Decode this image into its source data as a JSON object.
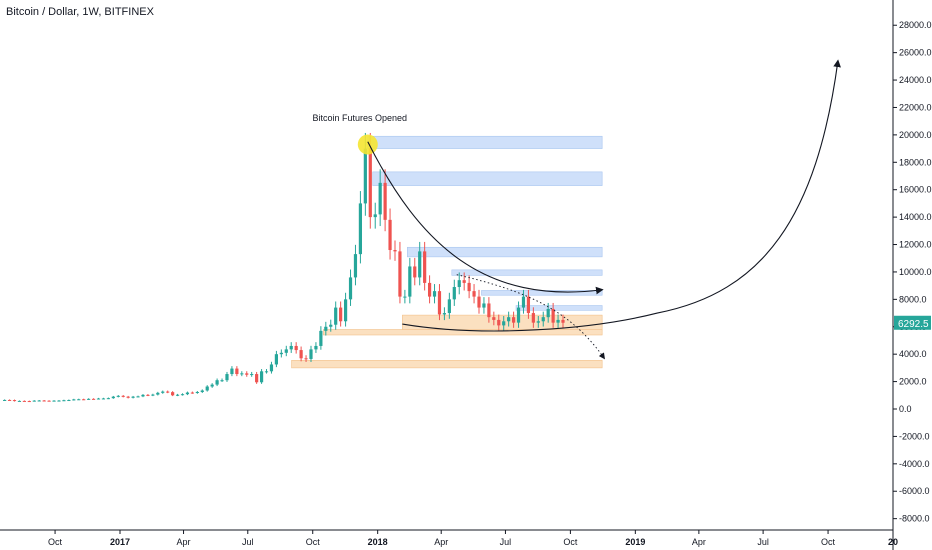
{
  "header": {
    "title": "Bitcoin / Dollar, 1W, BITFINEX"
  },
  "colors": {
    "up": "#26a69a",
    "down": "#ef5350",
    "resistance_zone": "#cfe0fa",
    "support_zone": "#fbe0c0",
    "highlight": "#f5e632",
    "last_price_bg": "#26a69a",
    "axis_line": "#131722"
  },
  "chart_data": {
    "type": "candlestick",
    "symbol": "Bitcoin / Dollar",
    "interval": "1W",
    "exchange": "BITFINEX",
    "last_price": "6292.5",
    "y_axis": {
      "range": [
        -9000,
        29000
      ],
      "ticks": [
        "28000.0",
        "26000.0",
        "24000.0",
        "22000.0",
        "20000.0",
        "18000.0",
        "16000.0",
        "14000.0",
        "12000.0",
        "10000.0",
        "8000.0",
        "6000.0",
        "4000.0",
        "2000.0",
        "0.0",
        "-2000.0",
        "-4000.0",
        "-6000.0",
        "-8000.0"
      ],
      "tick_values": [
        28000,
        26000,
        24000,
        22000,
        20000,
        18000,
        16000,
        14000,
        12000,
        10000,
        8000,
        6000,
        4000,
        2000,
        0,
        -2000,
        -4000,
        -6000,
        -8000
      ]
    },
    "x_axis": {
      "range": [
        "2016-07-15",
        "2020-01-01"
      ],
      "ticks": [
        {
          "label": "Oct",
          "date": "2016-10-01",
          "bold": false
        },
        {
          "label": "2017",
          "date": "2017-01-01",
          "bold": true
        },
        {
          "label": "Apr",
          "date": "2017-04-01",
          "bold": false
        },
        {
          "label": "Jul",
          "date": "2017-07-01",
          "bold": false
        },
        {
          "label": "Oct",
          "date": "2017-10-01",
          "bold": false
        },
        {
          "label": "2018",
          "date": "2018-01-01",
          "bold": true
        },
        {
          "label": "Apr",
          "date": "2018-04-01",
          "bold": false
        },
        {
          "label": "Jul",
          "date": "2018-07-01",
          "bold": false
        },
        {
          "label": "Oct",
          "date": "2018-10-01",
          "bold": false
        },
        {
          "label": "2019",
          "date": "2019-01-01",
          "bold": true
        },
        {
          "label": "Apr",
          "date": "2019-04-01",
          "bold": false
        },
        {
          "label": "Jul",
          "date": "2019-07-01",
          "bold": false
        },
        {
          "label": "Oct",
          "date": "2019-10-01",
          "bold": false
        },
        {
          "label": "20",
          "date": "2020-01-01",
          "bold": true
        }
      ]
    },
    "closes": [
      [
        "2016-07-18",
        660
      ],
      [
        "2016-07-25",
        650
      ],
      [
        "2016-08-01",
        580
      ],
      [
        "2016-08-08",
        590
      ],
      [
        "2016-08-15",
        580
      ],
      [
        "2016-08-22",
        575
      ],
      [
        "2016-08-29",
        610
      ],
      [
        "2016-09-05",
        620
      ],
      [
        "2016-09-12",
        605
      ],
      [
        "2016-09-19",
        600
      ],
      [
        "2016-09-26",
        610
      ],
      [
        "2016-10-03",
        615
      ],
      [
        "2016-10-10",
        640
      ],
      [
        "2016-10-17",
        655
      ],
      [
        "2016-10-24",
        700
      ],
      [
        "2016-10-31",
        710
      ],
      [
        "2016-11-07",
        705
      ],
      [
        "2016-11-14",
        740
      ],
      [
        "2016-11-21",
        735
      ],
      [
        "2016-11-28",
        765
      ],
      [
        "2016-12-05",
        770
      ],
      [
        "2016-12-12",
        790
      ],
      [
        "2016-12-19",
        900
      ],
      [
        "2016-12-26",
        960
      ],
      [
        "2017-01-02",
        900
      ],
      [
        "2017-01-09",
        820
      ],
      [
        "2017-01-16",
        900
      ],
      [
        "2017-01-23",
        920
      ],
      [
        "2017-01-30",
        1030
      ],
      [
        "2017-02-06",
        1000
      ],
      [
        "2017-02-13",
        1050
      ],
      [
        "2017-02-20",
        1180
      ],
      [
        "2017-02-27",
        1270
      ],
      [
        "2017-03-06",
        1230
      ],
      [
        "2017-03-13",
        1000
      ],
      [
        "2017-03-20",
        1040
      ],
      [
        "2017-03-27",
        1080
      ],
      [
        "2017-04-03",
        1200
      ],
      [
        "2017-04-10",
        1180
      ],
      [
        "2017-04-17",
        1240
      ],
      [
        "2017-04-24",
        1350
      ],
      [
        "2017-05-01",
        1640
      ],
      [
        "2017-05-08",
        1780
      ],
      [
        "2017-05-15",
        2100
      ],
      [
        "2017-05-22",
        2100
      ],
      [
        "2017-05-29",
        2550
      ],
      [
        "2017-06-05",
        2950
      ],
      [
        "2017-06-12",
        2550
      ],
      [
        "2017-06-19",
        2600
      ],
      [
        "2017-06-26",
        2500
      ],
      [
        "2017-07-03",
        2550
      ],
      [
        "2017-07-10",
        1950
      ],
      [
        "2017-07-17",
        2750
      ],
      [
        "2017-07-24",
        2750
      ],
      [
        "2017-07-31",
        3250
      ],
      [
        "2017-08-07",
        4000
      ],
      [
        "2017-08-14",
        4100
      ],
      [
        "2017-08-21",
        4350
      ],
      [
        "2017-08-28",
        4600
      ],
      [
        "2017-09-04",
        4300
      ],
      [
        "2017-09-11",
        3700
      ],
      [
        "2017-09-18",
        3650
      ],
      [
        "2017-09-25",
        4350
      ],
      [
        "2017-10-02",
        4600
      ],
      [
        "2017-10-09",
        5700
      ],
      [
        "2017-10-16",
        6000
      ],
      [
        "2017-10-23",
        6150
      ],
      [
        "2017-10-30",
        7400
      ],
      [
        "2017-11-06",
        6400
      ],
      [
        "2017-11-13",
        8000
      ],
      [
        "2017-11-20",
        9600
      ],
      [
        "2017-11-27",
        11300
      ],
      [
        "2017-12-04",
        15000
      ],
      [
        "2017-12-11",
        19000
      ],
      [
        "2017-12-18",
        14000
      ],
      [
        "2017-12-25",
        14200
      ],
      [
        "2018-01-01",
        16500
      ],
      [
        "2018-01-08",
        13800
      ],
      [
        "2018-01-15",
        11600
      ],
      [
        "2018-01-22",
        11500
      ],
      [
        "2018-01-29",
        8200
      ],
      [
        "2018-02-05",
        8200
      ],
      [
        "2018-02-12",
        10400
      ],
      [
        "2018-02-19",
        9600
      ],
      [
        "2018-02-26",
        11500
      ],
      [
        "2018-03-05",
        9200
      ],
      [
        "2018-03-12",
        8200
      ],
      [
        "2018-03-19",
        8600
      ],
      [
        "2018-03-26",
        6900
      ],
      [
        "2018-04-02",
        7000
      ],
      [
        "2018-04-09",
        8000
      ],
      [
        "2018-04-16",
        8900
      ],
      [
        "2018-04-23",
        9400
      ],
      [
        "2018-04-30",
        9200
      ],
      [
        "2018-05-07",
        8600
      ],
      [
        "2018-05-14",
        8200
      ],
      [
        "2018-05-21",
        7400
      ],
      [
        "2018-05-28",
        7700
      ],
      [
        "2018-06-04",
        6700
      ],
      [
        "2018-06-11",
        6500
      ],
      [
        "2018-06-18",
        6100
      ],
      [
        "2018-06-25",
        6400
      ],
      [
        "2018-07-02",
        6700
      ],
      [
        "2018-07-09",
        6300
      ],
      [
        "2018-07-16",
        7400
      ],
      [
        "2018-07-23",
        8200
      ],
      [
        "2018-07-30",
        7000
      ],
      [
        "2018-08-06",
        6300
      ],
      [
        "2018-08-13",
        6400
      ],
      [
        "2018-08-20",
        6700
      ],
      [
        "2018-08-27",
        7300
      ],
      [
        "2018-09-03",
        6300
      ],
      [
        "2018-09-10",
        6500
      ],
      [
        "2018-09-17",
        6292.5
      ]
    ],
    "annotations": {
      "label": "Bitcoin Futures Opened",
      "resistance_zones": [
        [
          19000,
          19900,
          "2017-12-18",
          "2018-11-15"
        ],
        [
          16300,
          17300,
          "2017-12-25",
          "2018-11-15"
        ],
        [
          11100,
          11800,
          "2018-02-12",
          "2018-11-15"
        ],
        [
          9750,
          10150,
          "2018-04-16",
          "2018-11-15"
        ],
        [
          8300,
          8650,
          "2018-05-28",
          "2018-11-15"
        ],
        [
          7200,
          7550,
          "2018-07-16",
          "2018-11-15"
        ]
      ],
      "support_zones": [
        [
          5750,
          6850,
          "2018-02-05",
          "2018-11-15"
        ],
        [
          5400,
          5800,
          "2017-10-16",
          "2018-11-15"
        ],
        [
          3000,
          3550,
          "2017-09-01",
          "2018-11-15"
        ]
      ]
    }
  }
}
